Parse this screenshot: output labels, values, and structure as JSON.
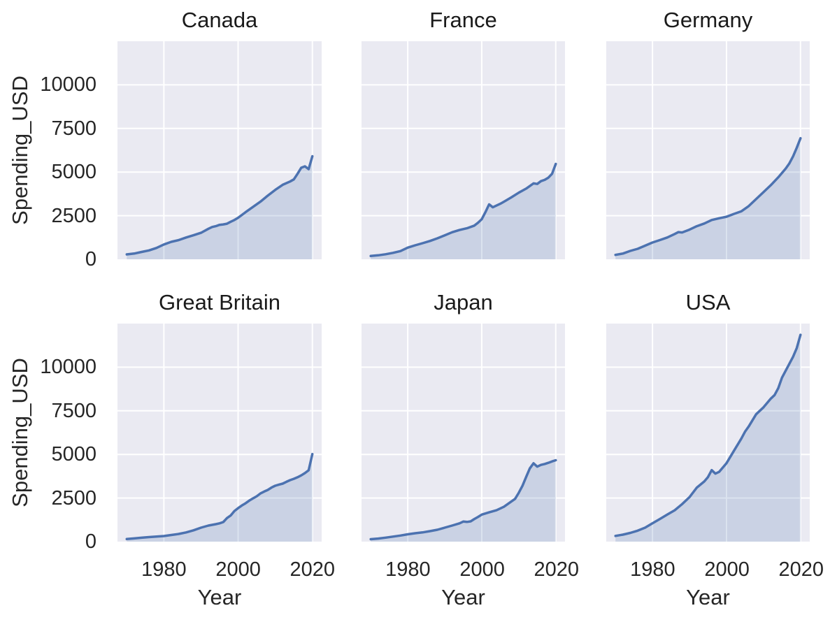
{
  "chart_data": {
    "type": "area",
    "facet_layout": "2 rows x 3 columns, shared axes",
    "grid": true,
    "xlabel": "Year",
    "ylabel": "Spending_USD",
    "xlim": [
      1967.5,
      2022.5
    ],
    "ylim": [
      0,
      12500
    ],
    "xticks": [
      1980,
      2000,
      2020
    ],
    "xtick_labels": [
      "1980",
      "2000",
      "2020"
    ],
    "yticks": [
      0,
      2500,
      5000,
      7500,
      10000
    ],
    "ytick_labels": [
      "0",
      "2500",
      "5000",
      "7500",
      "10000"
    ],
    "colors": {
      "line": "#4c72b0",
      "fill": "rgba(76,114,176,0.2)",
      "panel_bg": "#eaeaf2",
      "gridline": "#ffffff",
      "text": "#262626"
    },
    "facets": [
      {
        "title": "Canada",
        "x": [
          1970,
          1972,
          1974,
          1976,
          1978,
          1980,
          1982,
          1984,
          1986,
          1988,
          1990,
          1992,
          1993,
          1994,
          1995,
          1996,
          1997,
          1998,
          1999,
          2000,
          2002,
          2004,
          2006,
          2008,
          2010,
          2012,
          2014,
          2015,
          2016,
          2017,
          2018,
          2019,
          2020
        ],
        "y": [
          280,
          330,
          420,
          510,
          650,
          850,
          1000,
          1100,
          1250,
          1380,
          1520,
          1750,
          1850,
          1900,
          1975,
          2000,
          2040,
          2150,
          2250,
          2380,
          2700,
          3000,
          3300,
          3650,
          3980,
          4270,
          4460,
          4580,
          4900,
          5250,
          5330,
          5170,
          5906
        ]
      },
      {
        "title": "France",
        "x": [
          1970,
          1972,
          1974,
          1976,
          1978,
          1980,
          1982,
          1984,
          1986,
          1988,
          1990,
          1992,
          1994,
          1996,
          1998,
          1999,
          2000,
          2001,
          2002,
          2003,
          2004,
          2005,
          2006,
          2008,
          2010,
          2012,
          2013,
          2014,
          2015,
          2016,
          2017,
          2018,
          2019,
          2020
        ],
        "y": [
          190,
          230,
          290,
          370,
          470,
          670,
          800,
          920,
          1050,
          1200,
          1370,
          1550,
          1680,
          1780,
          1930,
          2100,
          2300,
          2700,
          3150,
          2980,
          3080,
          3180,
          3300,
          3550,
          3820,
          4050,
          4200,
          4350,
          4320,
          4480,
          4550,
          4680,
          4900,
          5468
        ]
      },
      {
        "title": "Germany",
        "x": [
          1970,
          1972,
          1974,
          1976,
          1978,
          1980,
          1982,
          1984,
          1986,
          1987,
          1988,
          1990,
          1992,
          1994,
          1995,
          1996,
          1998,
          2000,
          2002,
          2004,
          2006,
          2008,
          2010,
          2012,
          2014,
          2016,
          2017,
          2018,
          2019,
          2020
        ],
        "y": [
          252,
          330,
          480,
          600,
          780,
          960,
          1100,
          1250,
          1450,
          1560,
          1540,
          1700,
          1900,
          2050,
          2150,
          2250,
          2350,
          2440,
          2600,
          2750,
          3050,
          3450,
          3850,
          4250,
          4700,
          5200,
          5500,
          5900,
          6400,
          6939
        ]
      },
      {
        "title": "Great Britain",
        "x": [
          1970,
          1972,
          1974,
          1976,
          1978,
          1980,
          1982,
          1984,
          1986,
          1988,
          1990,
          1992,
          1994,
          1995,
          1996,
          1997,
          1998,
          1999,
          2000,
          2001,
          2002,
          2003,
          2004,
          2005,
          2006,
          2007,
          2008,
          2009,
          2010,
          2011,
          2012,
          2013,
          2014,
          2015,
          2016,
          2017,
          2018,
          2019,
          2020
        ],
        "y": [
          150,
          185,
          225,
          260,
          290,
          320,
          380,
          440,
          530,
          650,
          800,
          920,
          1000,
          1050,
          1120,
          1350,
          1500,
          1750,
          1920,
          2070,
          2200,
          2350,
          2480,
          2600,
          2760,
          2870,
          2965,
          3100,
          3205,
          3270,
          3325,
          3430,
          3525,
          3600,
          3690,
          3800,
          3930,
          4090,
          5019
        ]
      },
      {
        "title": "Japan",
        "x": [
          1970,
          1972,
          1974,
          1976,
          1978,
          1980,
          1982,
          1984,
          1986,
          1988,
          1990,
          1992,
          1994,
          1995,
          1996,
          1997,
          1998,
          1999,
          2000,
          2002,
          2004,
          2006,
          2008,
          2009,
          2010,
          2011,
          2012,
          2013,
          2014,
          2015,
          2016,
          2017,
          2018,
          2019,
          2020
        ],
        "y": [
          140,
          175,
          230,
          290,
          350,
          420,
          480,
          530,
          600,
          680,
          800,
          920,
          1050,
          1150,
          1130,
          1160,
          1300,
          1420,
          1550,
          1680,
          1800,
          2000,
          2300,
          2450,
          2800,
          3200,
          3700,
          4200,
          4490,
          4300,
          4400,
          4450,
          4520,
          4600,
          4666
        ]
      },
      {
        "title": "USA",
        "x": [
          1970,
          1972,
          1974,
          1976,
          1978,
          1980,
          1982,
          1984,
          1986,
          1988,
          1990,
          1992,
          1994,
          1995,
          1996,
          1997,
          1998,
          2000,
          2002,
          2004,
          2005,
          2006,
          2008,
          2010,
          2012,
          2013,
          2014,
          2015,
          2016,
          2017,
          2018,
          2019,
          2020
        ],
        "y": [
          330,
          400,
          500,
          630,
          800,
          1050,
          1300,
          1550,
          1800,
          2150,
          2550,
          3100,
          3450,
          3700,
          4100,
          3900,
          4000,
          4500,
          5200,
          5900,
          6300,
          6600,
          7300,
          7700,
          8200,
          8400,
          8800,
          9400,
          9800,
          10200,
          10600,
          11100,
          11859
        ]
      }
    ]
  }
}
